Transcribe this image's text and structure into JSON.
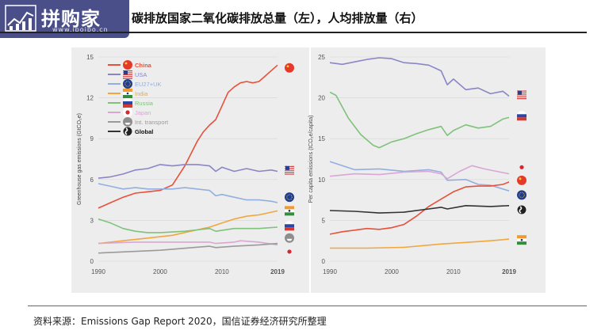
{
  "logo": {
    "text": "拼购家",
    "url": "www.ipoipo.cn"
  },
  "title": "碳排放国家二氧化碳排放总量（左），人均排放量（右）",
  "source": "资料来源：Emissions Gap Report 2020，国信证券经济研究所整理",
  "chart_data": [
    {
      "type": "line",
      "ylabel": "Greenhouse gas emissions (GtCO₂e)",
      "ylim": [
        0,
        15
      ],
      "xlim": [
        1990,
        2019
      ],
      "x_ticks": [
        "1990",
        "2000",
        "2010",
        "2019"
      ],
      "y_ticks": [
        "0",
        "3",
        "6",
        "9",
        "12",
        "15"
      ],
      "grid": true,
      "legend": "top-left",
      "series": [
        {
          "name": "China",
          "color": "#e8503a",
          "icon": "china-flag-icon",
          "x": [
            1990,
            1992,
            1994,
            1996,
            1998,
            2000,
            2002,
            2004,
            2006,
            2007,
            2008,
            2009,
            2010,
            2011,
            2012,
            2013,
            2014,
            2015,
            2016,
            2017,
            2018,
            2019
          ],
          "y": [
            3.9,
            4.3,
            4.7,
            5.0,
            5.1,
            5.2,
            5.6,
            7.0,
            8.8,
            9.5,
            10.0,
            10.4,
            11.4,
            12.4,
            12.8,
            13.1,
            13.2,
            13.1,
            13.2,
            13.6,
            14.0,
            14.4
          ]
        },
        {
          "name": "USA",
          "color": "#8a86c6",
          "icon": "usa-flag-icon",
          "x": [
            1990,
            1992,
            1994,
            1996,
            1998,
            2000,
            2002,
            2004,
            2006,
            2008,
            2009,
            2010,
            2012,
            2014,
            2016,
            2018,
            2019
          ],
          "y": [
            6.1,
            6.2,
            6.4,
            6.7,
            6.8,
            7.1,
            7.0,
            7.1,
            7.1,
            7.0,
            6.6,
            6.9,
            6.6,
            6.8,
            6.6,
            6.7,
            6.6
          ]
        },
        {
          "name": "EU27+UK",
          "color": "#93aee0",
          "icon": "eu-flag-icon",
          "x": [
            1990,
            1992,
            1994,
            1996,
            1998,
            2000,
            2002,
            2004,
            2006,
            2008,
            2009,
            2010,
            2012,
            2014,
            2016,
            2018,
            2019
          ],
          "y": [
            5.7,
            5.5,
            5.3,
            5.4,
            5.3,
            5.3,
            5.3,
            5.4,
            5.3,
            5.2,
            4.8,
            4.9,
            4.7,
            4.5,
            4.5,
            4.4,
            4.3
          ]
        },
        {
          "name": "India",
          "color": "#f2a63c",
          "icon": "india-flag-icon",
          "x": [
            1990,
            1994,
            1998,
            2002,
            2006,
            2008,
            2010,
            2012,
            2014,
            2016,
            2018,
            2019
          ],
          "y": [
            1.3,
            1.5,
            1.7,
            1.9,
            2.3,
            2.5,
            2.8,
            3.1,
            3.3,
            3.4,
            3.6,
            3.7
          ]
        },
        {
          "name": "Russia",
          "color": "#7fc27a",
          "icon": "russia-flag-icon",
          "x": [
            1990,
            1992,
            1994,
            1996,
            1998,
            2000,
            2004,
            2008,
            2009,
            2012,
            2016,
            2019
          ],
          "y": [
            3.1,
            2.8,
            2.4,
            2.2,
            2.1,
            2.1,
            2.2,
            2.4,
            2.2,
            2.4,
            2.4,
            2.5
          ]
        },
        {
          "name": "Japan",
          "color": "#d9a6d6",
          "icon": "japan-flag-icon",
          "x": [
            1990,
            1996,
            2000,
            2004,
            2008,
            2009,
            2012,
            2013,
            2016,
            2019
          ],
          "y": [
            1.3,
            1.4,
            1.4,
            1.4,
            1.4,
            1.3,
            1.4,
            1.5,
            1.4,
            1.2
          ]
        },
        {
          "name": "Int. transport",
          "color": "#9a9a9a",
          "icon": "ship-icon",
          "x": [
            1990,
            2000,
            2008,
            2009,
            2012,
            2016,
            2019
          ],
          "y": [
            0.6,
            0.8,
            1.1,
            1.0,
            1.1,
            1.2,
            1.3
          ]
        },
        {
          "name": "Global",
          "color": "#333333",
          "icon": "globe-icon",
          "x": [],
          "y": []
        }
      ]
    },
    {
      "type": "line",
      "ylabel": "Per capita emissions (tCO₂e/capita)",
      "ylim": [
        0,
        25
      ],
      "xlim": [
        1990,
        2019
      ],
      "x_ticks": [
        "1990",
        "2000",
        "2010",
        "2019"
      ],
      "y_ticks": [
        "0",
        "5",
        "10",
        "15",
        "20",
        "25"
      ],
      "grid": true,
      "series": [
        {
          "name": "USA",
          "color": "#8a86c6",
          "x": [
            1990,
            1992,
            1994,
            1996,
            1998,
            2000,
            2002,
            2004,
            2006,
            2008,
            2009,
            2010,
            2012,
            2014,
            2016,
            2018,
            2019
          ],
          "y": [
            24.3,
            24.1,
            24.4,
            24.7,
            24.9,
            24.8,
            24.3,
            24.2,
            24.0,
            23.3,
            21.6,
            22.3,
            21.0,
            21.2,
            20.5,
            20.8,
            20.2
          ]
        },
        {
          "name": "Russia",
          "color": "#7fc27a",
          "x": [
            1990,
            1991,
            1993,
            1995,
            1997,
            1998,
            2000,
            2002,
            2004,
            2006,
            2008,
            2009,
            2010,
            2012,
            2014,
            2016,
            2018,
            2019
          ],
          "y": [
            20.7,
            20.3,
            17.5,
            15.5,
            14.2,
            13.9,
            14.6,
            15.0,
            15.6,
            16.1,
            16.5,
            15.4,
            16.0,
            16.7,
            16.3,
            16.5,
            17.4,
            17.6
          ]
        },
        {
          "name": "EU27+UK",
          "color": "#93aee0",
          "x": [
            1990,
            1994,
            1998,
            2002,
            2006,
            2008,
            2009,
            2012,
            2014,
            2016,
            2019
          ],
          "y": [
            12.2,
            11.2,
            11.3,
            11.0,
            11.2,
            10.9,
            9.9,
            10.0,
            9.4,
            9.3,
            8.6
          ]
        },
        {
          "name": "Japan",
          "color": "#d9a6d6",
          "x": [
            1990,
            1994,
            1998,
            2002,
            2006,
            2008,
            2009,
            2011,
            2013,
            2015,
            2017,
            2019
          ],
          "y": [
            10.4,
            10.7,
            10.6,
            10.9,
            11.0,
            10.7,
            10.1,
            11.0,
            11.7,
            11.3,
            11.0,
            10.7
          ]
        },
        {
          "name": "China",
          "color": "#e8503a",
          "x": [
            1990,
            1992,
            1994,
            1996,
            1998,
            2000,
            2002,
            2004,
            2006,
            2008,
            2010,
            2012,
            2014,
            2016,
            2018,
            2019
          ],
          "y": [
            3.3,
            3.6,
            3.8,
            4.0,
            3.9,
            4.1,
            4.5,
            5.5,
            6.7,
            7.6,
            8.5,
            9.1,
            9.2,
            9.2,
            9.4,
            9.7
          ]
        },
        {
          "name": "Global",
          "color": "#333333",
          "x": [
            1990,
            1994,
            1998,
            2002,
            2006,
            2008,
            2009,
            2012,
            2016,
            2019
          ],
          "y": [
            6.2,
            6.1,
            5.9,
            6.0,
            6.4,
            6.6,
            6.4,
            6.8,
            6.7,
            6.8
          ]
        },
        {
          "name": "India",
          "color": "#f2a63c",
          "x": [
            1990,
            1996,
            2002,
            2008,
            2012,
            2016,
            2019
          ],
          "y": [
            1.6,
            1.6,
            1.7,
            2.1,
            2.3,
            2.5,
            2.7
          ]
        }
      ]
    }
  ]
}
